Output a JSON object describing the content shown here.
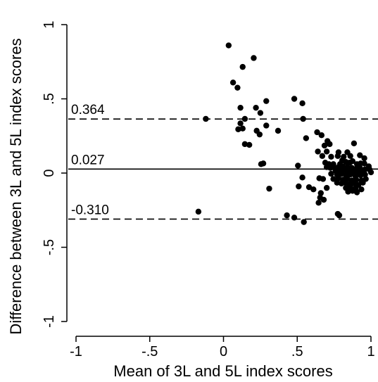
{
  "chart_data": {
    "type": "scatter",
    "title": "",
    "xlabel": "Mean of 3L and 5L index scores",
    "ylabel": "Difference between 3L and 5L index scores",
    "xlim": [
      -1.05,
      1.05
    ],
    "ylim": [
      -1.05,
      1.05
    ],
    "x_ticks": [
      {
        "value": -1,
        "label": "-1"
      },
      {
        "value": -0.5,
        "label": "-.5"
      },
      {
        "value": 0,
        "label": "0"
      },
      {
        "value": 0.5,
        "label": ".5"
      },
      {
        "value": 1,
        "label": "1"
      }
    ],
    "y_ticks": [
      {
        "value": -1,
        "label": "-1"
      },
      {
        "value": -0.5,
        "label": "-.5"
      },
      {
        "value": 0,
        "label": "0"
      },
      {
        "value": 0.5,
        "label": ".5"
      },
      {
        "value": 1,
        "label": "1"
      }
    ],
    "reference_lines": [
      {
        "name": "upper-limit",
        "value": 0.364,
        "label": "0.364",
        "style": "dashed"
      },
      {
        "name": "mean-difference",
        "value": 0.027,
        "label": "0.027",
        "style": "solid"
      },
      {
        "name": "lower-limit",
        "value": -0.31,
        "label": "-0.310",
        "style": "dashed"
      }
    ],
    "grid": false,
    "marker_color": "#000000",
    "points": [
      {
        "x": 0.035,
        "y": 0.86
      },
      {
        "x": 0.205,
        "y": 0.775
      },
      {
        "x": 0.13,
        "y": 0.715
      },
      {
        "x": 0.065,
        "y": 0.61
      },
      {
        "x": 0.095,
        "y": 0.575
      },
      {
        "x": 0.48,
        "y": 0.5
      },
      {
        "x": 0.29,
        "y": 0.485
      },
      {
        "x": 0.535,
        "y": 0.47
      },
      {
        "x": 0.115,
        "y": 0.44
      },
      {
        "x": 0.22,
        "y": 0.44
      },
      {
        "x": 0.25,
        "y": 0.405
      },
      {
        "x": 0.145,
        "y": 0.365
      },
      {
        "x": -0.12,
        "y": 0.365
      },
      {
        "x": 0.54,
        "y": 0.365
      },
      {
        "x": 0.115,
        "y": 0.335
      },
      {
        "x": 0.29,
        "y": 0.32
      },
      {
        "x": 0.1,
        "y": 0.295
      },
      {
        "x": 0.13,
        "y": 0.3
      },
      {
        "x": 0.225,
        "y": 0.285
      },
      {
        "x": 0.37,
        "y": 0.285
      },
      {
        "x": 0.245,
        "y": 0.26
      },
      {
        "x": 0.635,
        "y": 0.275
      },
      {
        "x": 0.665,
        "y": 0.255
      },
      {
        "x": 0.56,
        "y": 0.235
      },
      {
        "x": 0.705,
        "y": 0.215
      },
      {
        "x": 0.145,
        "y": 0.195
      },
      {
        "x": 0.175,
        "y": 0.19
      },
      {
        "x": 0.685,
        "y": 0.185
      },
      {
        "x": 0.72,
        "y": 0.195
      },
      {
        "x": 0.885,
        "y": 0.2
      },
      {
        "x": 0.64,
        "y": 0.145
      },
      {
        "x": 0.7,
        "y": 0.145
      },
      {
        "x": 0.78,
        "y": 0.14
      },
      {
        "x": 0.84,
        "y": 0.14
      },
      {
        "x": 0.67,
        "y": 0.115
      },
      {
        "x": 0.73,
        "y": 0.11
      },
      {
        "x": 0.775,
        "y": 0.115
      },
      {
        "x": 0.815,
        "y": 0.11
      },
      {
        "x": 0.86,
        "y": 0.115
      },
      {
        "x": 0.925,
        "y": 0.12
      },
      {
        "x": 0.955,
        "y": 0.1
      },
      {
        "x": 0.255,
        "y": 0.06
      },
      {
        "x": 0.27,
        "y": 0.065
      },
      {
        "x": 0.505,
        "y": 0.05
      },
      {
        "x": 0.69,
        "y": 0.07
      },
      {
        "x": 0.715,
        "y": 0.06
      },
      {
        "x": 0.745,
        "y": 0.06
      },
      {
        "x": 0.79,
        "y": 0.06
      },
      {
        "x": 0.805,
        "y": 0.085
      },
      {
        "x": 0.83,
        "y": 0.075
      },
      {
        "x": 0.855,
        "y": 0.07
      },
      {
        "x": 0.875,
        "y": 0.08
      },
      {
        "x": 0.905,
        "y": 0.06
      },
      {
        "x": 0.93,
        "y": 0.065
      },
      {
        "x": 0.955,
        "y": 0.065
      },
      {
        "x": 0.985,
        "y": 0.045
      },
      {
        "x": 0.7,
        "y": 0.04
      },
      {
        "x": 0.725,
        "y": 0.035
      },
      {
        "x": 0.755,
        "y": 0.035
      },
      {
        "x": 0.78,
        "y": 0.04
      },
      {
        "x": 0.81,
        "y": 0.045
      },
      {
        "x": 0.84,
        "y": 0.04
      },
      {
        "x": 0.87,
        "y": 0.035
      },
      {
        "x": 0.9,
        "y": 0.03
      },
      {
        "x": 0.925,
        "y": 0.035
      },
      {
        "x": 0.96,
        "y": 0.025
      },
      {
        "x": 0.99,
        "y": 0.025
      },
      {
        "x": 0.76,
        "y": 0.015
      },
      {
        "x": 0.79,
        "y": 0.01
      },
      {
        "x": 0.82,
        "y": 0.02
      },
      {
        "x": 0.85,
        "y": 0.01
      },
      {
        "x": 0.88,
        "y": 0.005
      },
      {
        "x": 0.91,
        "y": 0.01
      },
      {
        "x": 0.945,
        "y": 0.005
      },
      {
        "x": 1.0,
        "y": 0.005
      },
      {
        "x": 0.73,
        "y": -0.005
      },
      {
        "x": 0.77,
        "y": -0.01
      },
      {
        "x": 0.8,
        "y": -0.005
      },
      {
        "x": 0.83,
        "y": -0.015
      },
      {
        "x": 0.86,
        "y": -0.01
      },
      {
        "x": 0.895,
        "y": -0.02
      },
      {
        "x": 0.93,
        "y": -0.015
      },
      {
        "x": 0.96,
        "y": -0.01
      },
      {
        "x": 0.535,
        "y": -0.03
      },
      {
        "x": 0.65,
        "y": -0.035
      },
      {
        "x": 0.675,
        "y": -0.04
      },
      {
        "x": 0.745,
        "y": -0.04
      },
      {
        "x": 0.78,
        "y": -0.035
      },
      {
        "x": 0.81,
        "y": -0.045
      },
      {
        "x": 0.84,
        "y": -0.04
      },
      {
        "x": 0.87,
        "y": -0.05
      },
      {
        "x": 0.9,
        "y": -0.045
      },
      {
        "x": 0.935,
        "y": -0.05
      },
      {
        "x": 0.965,
        "y": -0.04
      },
      {
        "x": 0.77,
        "y": -0.065
      },
      {
        "x": 0.8,
        "y": -0.07
      },
      {
        "x": 0.825,
        "y": -0.065
      },
      {
        "x": 0.855,
        "y": -0.075
      },
      {
        "x": 0.885,
        "y": -0.07
      },
      {
        "x": 0.915,
        "y": -0.08
      },
      {
        "x": 0.945,
        "y": -0.065
      },
      {
        "x": 0.51,
        "y": -0.09
      },
      {
        "x": 0.58,
        "y": -0.095
      },
      {
        "x": 0.61,
        "y": -0.11
      },
      {
        "x": 0.7,
        "y": -0.1
      },
      {
        "x": 0.83,
        "y": -0.1
      },
      {
        "x": 0.86,
        "y": -0.095
      },
      {
        "x": 0.895,
        "y": -0.105
      },
      {
        "x": 0.31,
        "y": -0.105
      },
      {
        "x": 0.66,
        "y": -0.135
      },
      {
        "x": 0.845,
        "y": -0.125
      },
      {
        "x": 0.875,
        "y": -0.12
      },
      {
        "x": 0.905,
        "y": -0.13
      },
      {
        "x": 0.935,
        "y": -0.11
      },
      {
        "x": 0.655,
        "y": -0.165
      },
      {
        "x": 0.68,
        "y": -0.18
      },
      {
        "x": 0.645,
        "y": -0.2
      },
      {
        "x": -0.17,
        "y": -0.26
      },
      {
        "x": 0.775,
        "y": -0.275
      },
      {
        "x": 0.785,
        "y": -0.285
      },
      {
        "x": 0.43,
        "y": -0.285
      },
      {
        "x": 0.48,
        "y": -0.3
      },
      {
        "x": 0.545,
        "y": -0.33
      }
    ]
  }
}
